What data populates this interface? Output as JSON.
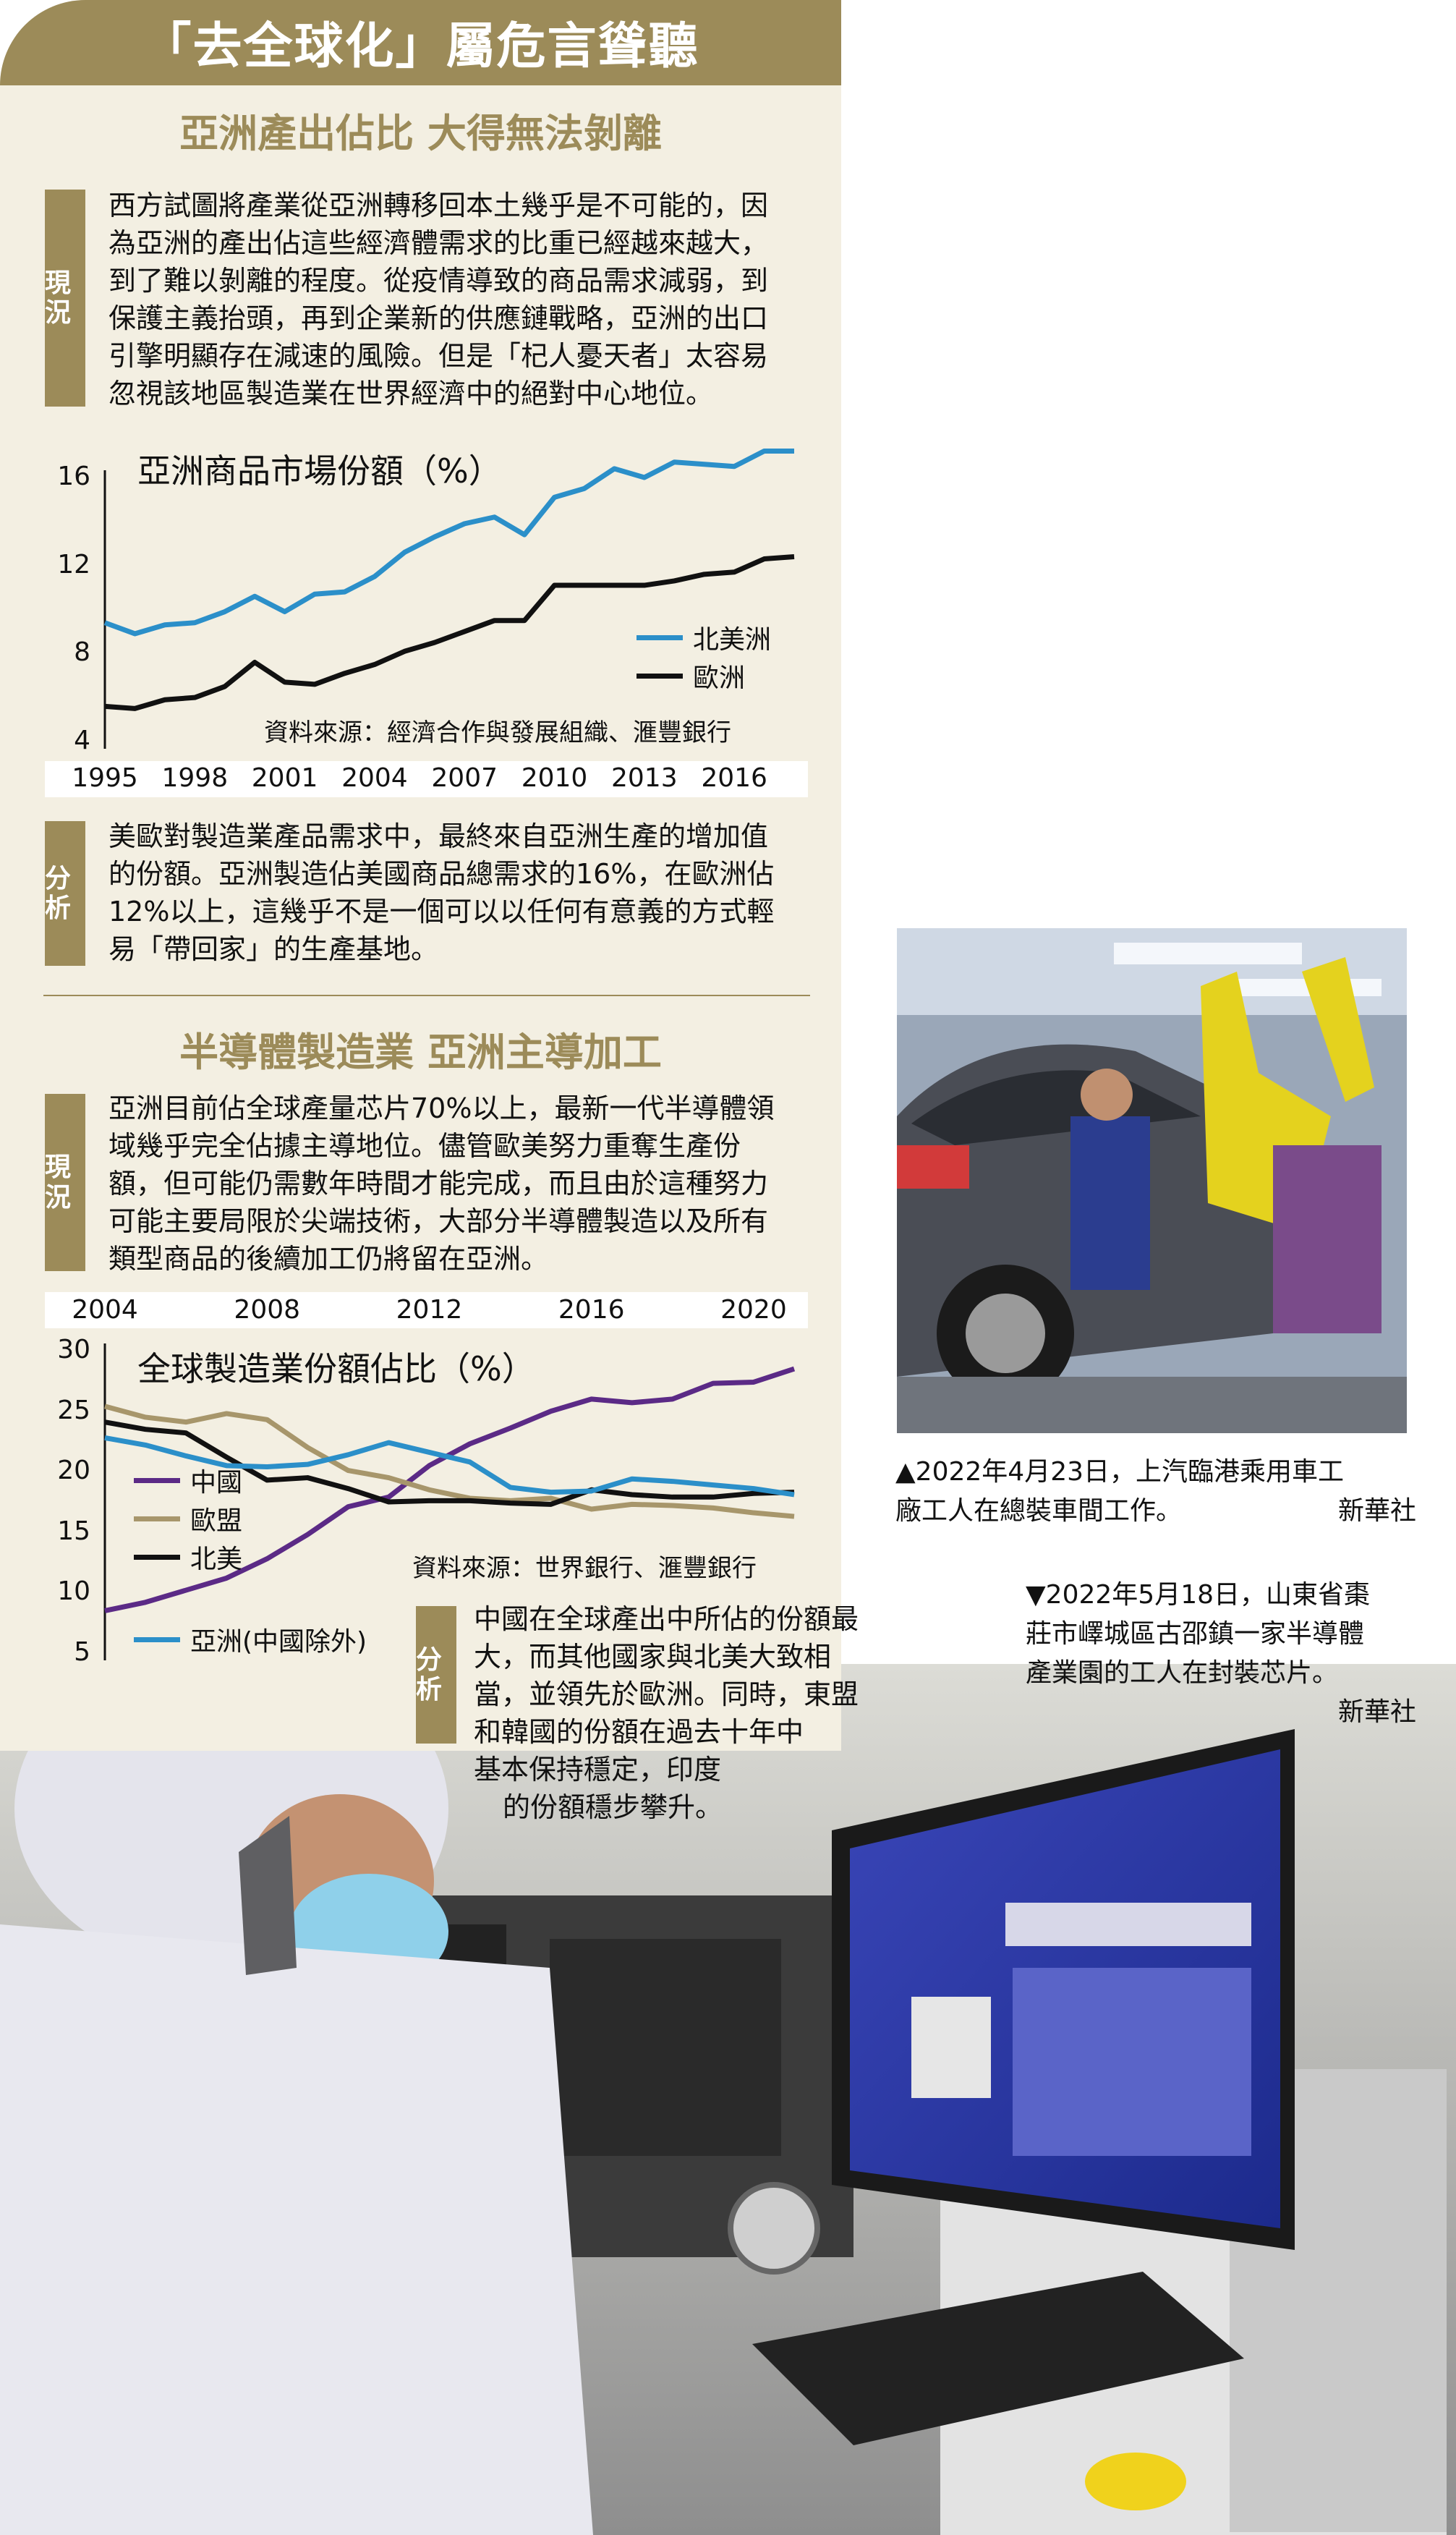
{
  "header": {
    "title": "「去全球化」屬危言聳聽"
  },
  "section1": {
    "title": "亞洲產出佔比  大得無法剝離",
    "status_tag": "現況",
    "status_lines": [
      "西方試圖將產業從亞洲轉移回本土幾乎是不可能的，因",
      "為亞洲的產出佔這些經濟體需求的比重已經越來越大，",
      "到了難以剝離的程度。從疫情導致的商品需求減弱，到",
      "保護主義抬頭，再到企業新的供應鏈戰略，亞洲的出口",
      "引擎明顯存在減速的風險。但是「杞人憂天者」太容易",
      "忽視該地區製造業在世界經濟中的絕對中心地位。"
    ],
    "analysis_tag": "分析",
    "analysis_lines": [
      "美歐對製造業產品需求中，最終來自亞洲生產的增加值",
      "的份額。亞洲製造佔美國商品總需求的16%，在歐洲佔",
      "12%以上，這幾乎不是一個可以以任何有意義的方式輕",
      "易「帶回家」的生產基地。"
    ]
  },
  "section2": {
    "title": "半導體製造業  亞洲主導加工",
    "status_tag": "現況",
    "status_lines": [
      "亞洲目前佔全球產量芯片70%以上，最新一代半導體領",
      "域幾乎完全佔據主導地位。儘管歐美努力重奪生產份",
      "額，但可能仍需數年時間才能完成，而且由於這種努力",
      "可能主要局限於尖端技術，大部分半導體製造以及所有",
      "類型商品的後續加工仍將留在亞洲。"
    ],
    "analysis_tag": "分析",
    "analysis_lines": [
      "中國在全球產出中所佔的份額最",
      "大，而其他國家與北美大致相",
      "當，並領先於歐洲。同時，東盟",
      "和韓國的份額在過去十年中",
      "基本保持穩定，印度",
      "的份額穩步攀升。"
    ]
  },
  "chart_data": [
    {
      "type": "line",
      "title": "亞洲商品市場份額（%）",
      "source": "資料來源：經濟合作與發展組織、滙豐銀行",
      "x_ticks": [
        "1995",
        "1998",
        "2001",
        "2004",
        "2007",
        "2010",
        "2013",
        "2016"
      ],
      "y_ticks": [
        "16",
        "12",
        "8",
        "4"
      ],
      "ylim": [
        4,
        16
      ],
      "xlim": [
        1995,
        2018
      ],
      "grid": false,
      "legend_position": "right",
      "x": [
        1995,
        1996,
        1997,
        1998,
        1999,
        2000,
        2001,
        2002,
        2003,
        2004,
        2005,
        2006,
        2007,
        2008,
        2009,
        2010,
        2011,
        2012,
        2013,
        2014,
        2015,
        2016,
        2017,
        2018
      ],
      "series": [
        {
          "name": "北美洲",
          "color": "#2b8fc9",
          "values": [
            9.4,
            8.9,
            9.3,
            9.4,
            9.9,
            10.6,
            9.9,
            10.7,
            10.8,
            11.5,
            12.6,
            13.3,
            13.9,
            14.2,
            13.4,
            15.1,
            15.5,
            16.4,
            16.0,
            16.7,
            16.6,
            16.5,
            17.2,
            17.2
          ]
        },
        {
          "name": "歐洲",
          "color": "#111111",
          "values": [
            5.6,
            5.5,
            5.9,
            6.0,
            6.5,
            7.6,
            6.7,
            6.6,
            7.1,
            7.5,
            8.1,
            8.5,
            9.0,
            9.5,
            9.5,
            11.1,
            11.1,
            11.1,
            11.1,
            11.3,
            11.6,
            11.7,
            12.3,
            12.4
          ]
        }
      ]
    },
    {
      "type": "line",
      "title": "全球製造業份額佔比（%）",
      "source": "資料來源：世界銀行、滙豐銀行",
      "x_ticks": [
        "2004",
        "2008",
        "2012",
        "2016",
        "2020"
      ],
      "y_ticks": [
        "30",
        "25",
        "20",
        "15",
        "10",
        "5"
      ],
      "ylim": [
        5,
        30
      ],
      "xlim": [
        2004,
        2021
      ],
      "grid": false,
      "legend_position": "left",
      "x": [
        2004,
        2005,
        2006,
        2007,
        2008,
        2009,
        2010,
        2011,
        2012,
        2013,
        2014,
        2015,
        2016,
        2017,
        2018,
        2019,
        2020,
        2021
      ],
      "series": [
        {
          "name": "中國",
          "color": "#5b2a86",
          "values": [
            8.5,
            9.2,
            10.2,
            11.2,
            12.8,
            14.8,
            17.1,
            17.9,
            20.5,
            22.3,
            23.6,
            25.0,
            26.0,
            25.7,
            26.0,
            27.3,
            27.4,
            28.5
          ]
        },
        {
          "name": "歐盟",
          "color": "#a7966b",
          "values": [
            25.4,
            24.5,
            24.1,
            24.8,
            24.3,
            22.0,
            20.1,
            19.5,
            18.5,
            17.8,
            17.6,
            17.8,
            16.9,
            17.3,
            17.2,
            17.0,
            16.6,
            16.3
          ]
        },
        {
          "name": "北美",
          "color": "#111111",
          "values": [
            24.1,
            23.5,
            23.2,
            21.2,
            19.3,
            19.5,
            18.6,
            17.5,
            17.6,
            17.6,
            17.4,
            17.3,
            18.5,
            18.1,
            17.9,
            17.9,
            18.2,
            18.3
          ]
        },
        {
          "name": "亞洲(中國除外)",
          "color": "#2b8fc9",
          "values": [
            22.8,
            22.2,
            21.3,
            20.5,
            20.4,
            20.6,
            21.4,
            22.4,
            21.6,
            20.8,
            18.7,
            18.3,
            18.4,
            19.4,
            19.2,
            18.9,
            18.6,
            18.1
          ]
        }
      ]
    }
  ],
  "photos": [
    {
      "caption_lines": [
        "▲2022年4月23日，上汽臨港乘用車工",
        "廠工人在總裝車間工作。"
      ],
      "credit": "新華社"
    },
    {
      "caption_lines": [
        "▼2022年5月18日，山東省棗",
        "莊市嶧城區古邵鎮一家半導體",
        "產業園的工人在封裝芯片。"
      ],
      "credit": "新華社"
    }
  ]
}
